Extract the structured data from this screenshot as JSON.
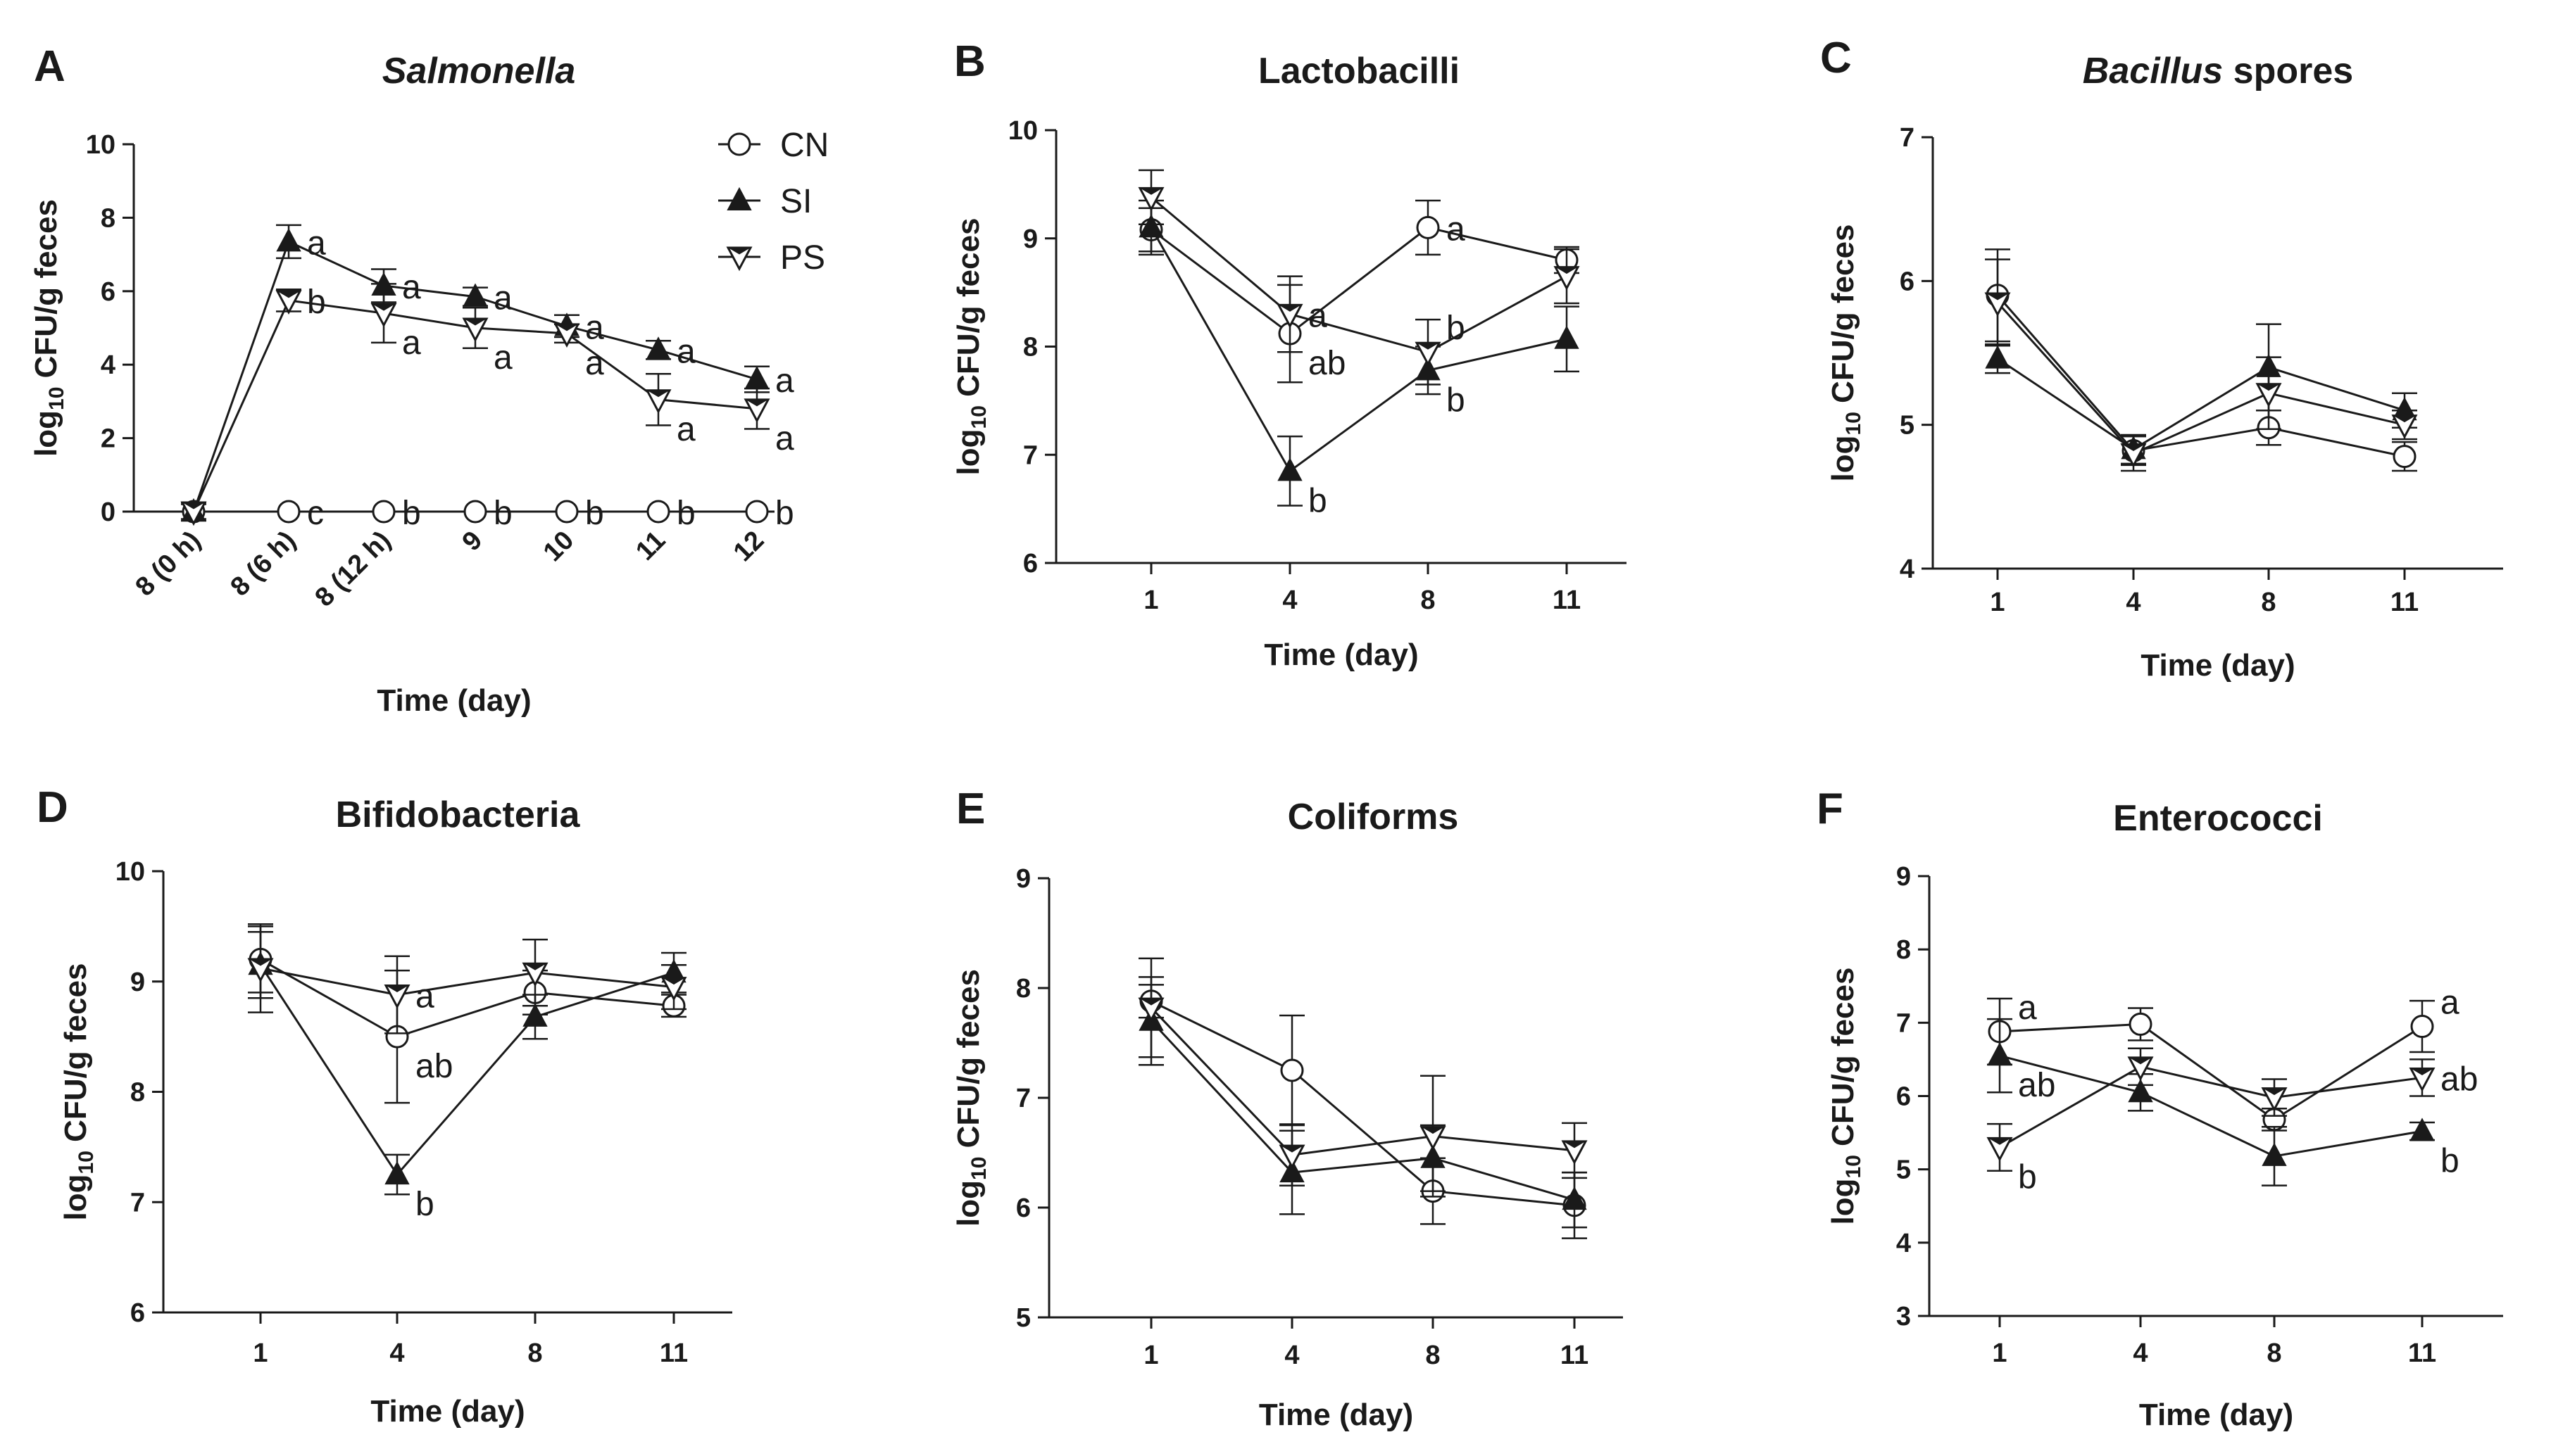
{
  "legend": [
    {
      "key": "CN",
      "label": "CN",
      "marker": "circle-open"
    },
    {
      "key": "SI",
      "label": "SI",
      "marker": "triangle-up-filled"
    },
    {
      "key": "PS",
      "label": "PS",
      "marker": "triangle-down-half"
    }
  ],
  "chart_data": [
    {
      "panel": "A",
      "type": "line",
      "title": "Salmonella",
      "title_italic": true,
      "xlabel": "Time (day)",
      "ylabel": "log10 CFU/g feces",
      "categories": [
        "8 (0 h)",
        "8 (6 h)",
        "8 (12 h)",
        "9",
        "10",
        "11",
        "12"
      ],
      "ylim": [
        0,
        10
      ],
      "yticks": [
        0,
        2,
        4,
        6,
        8,
        10
      ],
      "xtick_rotate": true,
      "series": [
        {
          "name": "CN",
          "values": [
            0,
            0,
            0,
            0,
            0,
            0,
            0
          ],
          "errors": [
            0,
            0,
            0,
            0,
            0,
            0,
            0
          ]
        },
        {
          "name": "SI",
          "values": [
            0,
            7.35,
            6.15,
            5.85,
            5.05,
            4.4,
            3.6
          ],
          "errors": [
            0.25,
            0.45,
            0.45,
            0.25,
            0.3,
            0.25,
            0.35
          ]
        },
        {
          "name": "PS",
          "values": [
            0,
            5.75,
            5.4,
            5.0,
            4.85,
            3.05,
            2.8
          ],
          "errors": [
            0.2,
            0.3,
            0.8,
            0.55,
            0.25,
            0.7,
            0.55
          ]
        }
      ],
      "labels": [
        {
          "series": "SI",
          "index": 1,
          "text": "a",
          "pos": "right"
        },
        {
          "series": "PS",
          "index": 1,
          "text": "b",
          "pos": "right"
        },
        {
          "series": "CN",
          "index": 1,
          "text": "c",
          "pos": "right"
        },
        {
          "series": "SI",
          "index": 2,
          "text": "a",
          "pos": "right"
        },
        {
          "series": "PS",
          "index": 2,
          "text": "a",
          "pos": "below-right"
        },
        {
          "series": "CN",
          "index": 2,
          "text": "b",
          "pos": "right"
        },
        {
          "series": "SI",
          "index": 3,
          "text": "a",
          "pos": "right"
        },
        {
          "series": "PS",
          "index": 3,
          "text": "a",
          "pos": "below-right"
        },
        {
          "series": "CN",
          "index": 3,
          "text": "b",
          "pos": "right"
        },
        {
          "series": "SI",
          "index": 4,
          "text": "a",
          "pos": "right"
        },
        {
          "series": "PS",
          "index": 4,
          "text": "a",
          "pos": "below-right"
        },
        {
          "series": "CN",
          "index": 4,
          "text": "b",
          "pos": "right"
        },
        {
          "series": "SI",
          "index": 5,
          "text": "a",
          "pos": "right"
        },
        {
          "series": "PS",
          "index": 5,
          "text": "a",
          "pos": "below-right"
        },
        {
          "series": "CN",
          "index": 5,
          "text": "b",
          "pos": "right"
        },
        {
          "series": "SI",
          "index": 6,
          "text": "a",
          "pos": "right"
        },
        {
          "series": "PS",
          "index": 6,
          "text": "a",
          "pos": "below-right"
        },
        {
          "series": "CN",
          "index": 6,
          "text": "b",
          "pos": "right"
        }
      ]
    },
    {
      "panel": "B",
      "type": "line",
      "title": "Lactobacilli",
      "title_italic": false,
      "xlabel": "Time (day)",
      "ylabel": "log10 CFU/g feces",
      "categories": [
        "1",
        "4",
        "8",
        "11"
      ],
      "ylim": [
        6,
        10
      ],
      "yticks": [
        6,
        7,
        8,
        9,
        10
      ],
      "series": [
        {
          "name": "CN",
          "values": [
            9.08,
            8.12,
            9.1,
            8.8
          ],
          "errors": [
            0.2,
            0.45,
            0.25,
            0.12
          ]
        },
        {
          "name": "SI",
          "values": [
            9.1,
            6.85,
            7.78,
            8.07
          ],
          "errors": [
            0.25,
            0.32,
            0.22,
            0.3
          ]
        },
        {
          "name": "PS",
          "values": [
            9.38,
            8.3,
            7.95,
            8.65
          ],
          "errors": [
            0.25,
            0.35,
            0.3,
            0.25
          ]
        }
      ],
      "labels": [
        {
          "series": "PS",
          "index": 1,
          "text": "a",
          "pos": "right"
        },
        {
          "series": "CN",
          "index": 1,
          "text": "ab",
          "pos": "below-right"
        },
        {
          "series": "SI",
          "index": 1,
          "text": "b",
          "pos": "below-right"
        },
        {
          "series": "CN",
          "index": 2,
          "text": "a",
          "pos": "right"
        },
        {
          "series": "PS",
          "index": 2,
          "text": "b",
          "pos": "above-right"
        },
        {
          "series": "SI",
          "index": 2,
          "text": "b",
          "pos": "below-right"
        }
      ]
    },
    {
      "panel": "C",
      "type": "line",
      "title": "Bacillus spores",
      "title_italic_word": "Bacillus",
      "xlabel": "Time (day)",
      "ylabel": "log10 CFU/g feces",
      "categories": [
        "1",
        "4",
        "8",
        "11"
      ],
      "ylim": [
        4,
        7
      ],
      "yticks": [
        4,
        5,
        6,
        7
      ],
      "series": [
        {
          "name": "CN",
          "values": [
            5.9,
            4.82,
            4.98,
            4.78
          ],
          "errors": [
            0.32,
            0.1,
            0.12,
            0.1
          ]
        },
        {
          "name": "SI",
          "values": [
            5.46,
            4.83,
            5.4,
            5.1
          ],
          "errors": [
            0.1,
            0.1,
            0.3,
            0.12
          ]
        },
        {
          "name": "PS",
          "values": [
            5.85,
            4.8,
            5.22,
            5.0
          ],
          "errors": [
            0.3,
            0.12,
            0.25,
            0.1
          ]
        }
      ],
      "labels": []
    },
    {
      "panel": "D",
      "type": "line",
      "title": "Bifidobacteria",
      "title_italic": false,
      "xlabel": "Time (day)",
      "ylabel": "log10 CFU/g feces",
      "categories": [
        "1",
        "4",
        "8",
        "11"
      ],
      "ylim": [
        6,
        10
      ],
      "yticks": [
        6,
        7,
        8,
        9,
        10
      ],
      "series": [
        {
          "name": "CN",
          "values": [
            9.2,
            8.5,
            8.9,
            8.78
          ],
          "errors": [
            0.3,
            0.6,
            0.2,
            0.1
          ]
        },
        {
          "name": "SI",
          "values": [
            9.15,
            7.25,
            8.68,
            9.08
          ],
          "errors": [
            0.3,
            0.18,
            0.2,
            0.18
          ]
        },
        {
          "name": "PS",
          "values": [
            9.12,
            8.88,
            9.08,
            8.95
          ],
          "errors": [
            0.4,
            0.35,
            0.3,
            0.2
          ]
        }
      ],
      "labels": [
        {
          "series": "PS",
          "index": 1,
          "text": "a",
          "pos": "right"
        },
        {
          "series": "CN",
          "index": 1,
          "text": "ab",
          "pos": "below-right"
        },
        {
          "series": "SI",
          "index": 1,
          "text": "b",
          "pos": "below-right"
        }
      ]
    },
    {
      "panel": "E",
      "type": "line",
      "title": "Coliforms",
      "title_italic": false,
      "xlabel": "Time (day)",
      "ylabel": "log10 CFU/g feces",
      "categories": [
        "1",
        "4",
        "8",
        "11"
      ],
      "ylim": [
        5,
        9
      ],
      "yticks": [
        5,
        6,
        7,
        8,
        9
      ],
      "series": [
        {
          "name": "CN",
          "values": [
            7.88,
            7.25,
            6.15,
            6.02
          ],
          "errors": [
            0.15,
            0.5,
            0.3,
            0.3
          ]
        },
        {
          "name": "SI",
          "values": [
            7.7,
            6.32,
            6.45,
            6.07
          ],
          "errors": [
            0.4,
            0.38,
            0.3,
            0.25
          ]
        },
        {
          "name": "PS",
          "values": [
            7.82,
            6.48,
            6.65,
            6.52
          ],
          "errors": [
            0.45,
            0.28,
            0.55,
            0.25
          ]
        }
      ],
      "labels": []
    },
    {
      "panel": "F",
      "type": "line",
      "title": "Enterococci",
      "title_italic": false,
      "xlabel": "Time (day)",
      "ylabel": "log10 CFU/g feces",
      "categories": [
        "1",
        "4",
        "8",
        "11"
      ],
      "ylim": [
        3,
        9
      ],
      "yticks": [
        3,
        4,
        5,
        6,
        7,
        8,
        9
      ],
      "series": [
        {
          "name": "CN",
          "values": [
            6.88,
            6.98,
            5.68,
            6.95
          ],
          "errors": [
            0.45,
            0.22,
            0.15,
            0.35
          ]
        },
        {
          "name": "SI",
          "values": [
            6.55,
            6.05,
            5.18,
            5.52
          ],
          "errors": [
            0.5,
            0.25,
            0.4,
            0.12
          ]
        },
        {
          "name": "PS",
          "values": [
            5.3,
            6.4,
            5.98,
            6.25
          ],
          "errors": [
            0.32,
            0.25,
            0.25,
            0.25
          ]
        }
      ],
      "labels": [
        {
          "series": "CN",
          "index": 0,
          "text": "a",
          "pos": "above-right"
        },
        {
          "series": "SI",
          "index": 0,
          "text": "ab",
          "pos": "below-right"
        },
        {
          "series": "PS",
          "index": 0,
          "text": "b",
          "pos": "below-right"
        },
        {
          "series": "CN",
          "index": 3,
          "text": "a",
          "pos": "above-right"
        },
        {
          "series": "PS",
          "index": 3,
          "text": "ab",
          "pos": "right"
        },
        {
          "series": "SI",
          "index": 3,
          "text": "b",
          "pos": "below-right"
        }
      ]
    }
  ]
}
